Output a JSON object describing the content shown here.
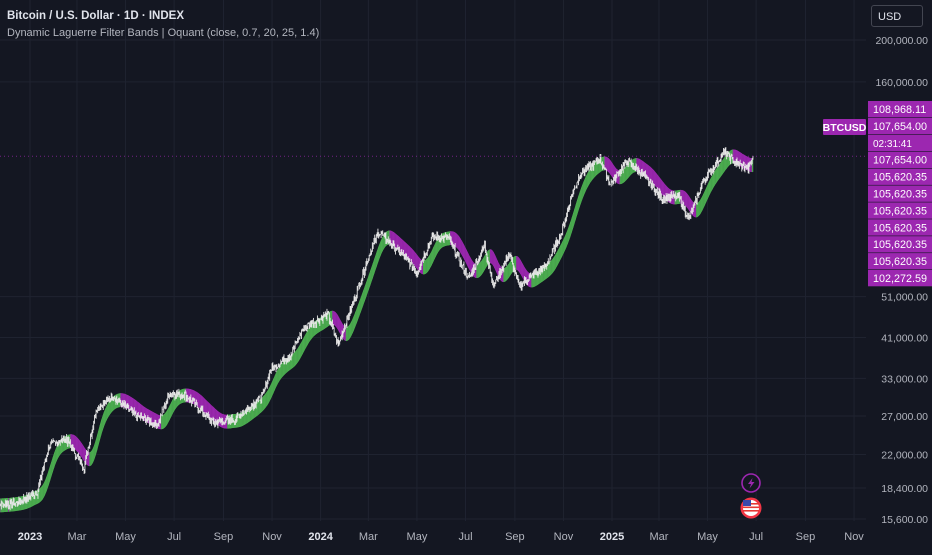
{
  "header": {
    "title": "Bitcoin / U.S. Dollar · 1D · INDEX",
    "indicator": "Dynamic Laguerre Filter Bands | Oquant (close, 0.7, 20, 25, 1.4)"
  },
  "currency_button": "USD",
  "symbol_tag": "BTCUSD",
  "colors": {
    "background": "#141722",
    "bull_band": "#4caf50",
    "bear_band": "#9c27b0",
    "label_bg": "#9c27b0",
    "grid": "#1f2330"
  },
  "icons": [
    "lightning-icon",
    "us-flag-icon"
  ],
  "chart_data": {
    "type": "line",
    "title": "Bitcoin / U.S. Dollar · 1D · INDEX",
    "scale": "log",
    "ylim": [
      15600,
      215000
    ],
    "y_ticks": [
      "200,000.00",
      "160,000.00",
      "51,000.00",
      "41,000.00",
      "33,000.00",
      "27,000.00",
      "22,000.00",
      "18,400.00",
      "15,600.00"
    ],
    "x_ticks": [
      "2023",
      "Mar",
      "May",
      "Jul",
      "Sep",
      "Nov",
      "2024",
      "Mar",
      "May",
      "Jul",
      "Sep",
      "Nov",
      "2025",
      "Mar",
      "May",
      "Jul",
      "Sep",
      "Nov"
    ],
    "price_labels": [
      "108,968.11",
      "107,654.00",
      "02:31:41",
      "107,654.00",
      "105,620.35",
      "105,620.35",
      "105,620.35",
      "105,620.35",
      "105,620.35",
      "105,620.35",
      "102,272.59"
    ],
    "last_price": 107654,
    "series": [
      {
        "values": [
          [
            "2022-11-15",
            16800
          ],
          [
            "2022-12-15",
            17000
          ],
          [
            "2023-01-10",
            18000
          ],
          [
            "2023-01-25",
            23000
          ],
          [
            "2023-02-15",
            24000
          ],
          [
            "2023-03-10",
            20500
          ],
          [
            "2023-03-25",
            28000
          ],
          [
            "2023-04-15",
            30000
          ],
          [
            "2023-05-15",
            27000
          ],
          [
            "2023-06-10",
            25800
          ],
          [
            "2023-06-25",
            30500
          ],
          [
            "2023-07-15",
            30200
          ],
          [
            "2023-08-20",
            26000
          ],
          [
            "2023-09-15",
            26500
          ],
          [
            "2023-10-20",
            30000
          ],
          [
            "2023-10-30",
            34500
          ],
          [
            "2023-11-25",
            37500
          ],
          [
            "2023-12-10",
            43000
          ],
          [
            "2024-01-10",
            46500
          ],
          [
            "2024-01-23",
            39500
          ],
          [
            "2024-02-15",
            52000
          ],
          [
            "2024-03-05",
            66000
          ],
          [
            "2024-03-14",
            72000
          ],
          [
            "2024-04-15",
            63000
          ],
          [
            "2024-05-01",
            58000
          ],
          [
            "2024-05-20",
            70000
          ],
          [
            "2024-06-10",
            69500
          ],
          [
            "2024-07-05",
            56000
          ],
          [
            "2024-07-25",
            67000
          ],
          [
            "2024-08-05",
            54000
          ],
          [
            "2024-08-25",
            64000
          ],
          [
            "2024-09-06",
            54000
          ],
          [
            "2024-10-10",
            60000
          ],
          [
            "2024-10-30",
            72000
          ],
          [
            "2024-11-12",
            88000
          ],
          [
            "2024-11-22",
            98000
          ],
          [
            "2024-12-17",
            106000
          ],
          [
            "2024-12-30",
            93000
          ],
          [
            "2025-01-20",
            105000
          ],
          [
            "2025-02-10",
            97000
          ],
          [
            "2025-03-05",
            86000
          ],
          [
            "2025-03-25",
            87000
          ],
          [
            "2025-04-08",
            77000
          ],
          [
            "2025-04-25",
            94000
          ],
          [
            "2025-05-22",
            110000
          ],
          [
            "2025-06-05",
            104000
          ],
          [
            "2025-06-22",
            101000
          ],
          [
            "2025-06-27",
            107654
          ]
        ]
      }
    ]
  }
}
